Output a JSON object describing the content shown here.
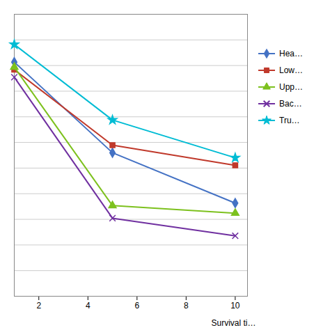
{
  "chart_data": {
    "type": "line",
    "x": [
      1,
      5,
      10
    ],
    "series": [
      {
        "name": "Hea…",
        "color": "#4472c4",
        "marker": "diamond",
        "values": [
          0.93,
          0.57,
          0.37
        ]
      },
      {
        "name": "Low…",
        "color": "#c0392b",
        "marker": "square",
        "values": [
          0.9,
          0.6,
          0.52
        ]
      },
      {
        "name": "Upp…",
        "color": "#7dc11e",
        "marker": "triangle",
        "values": [
          0.91,
          0.36,
          0.33
        ]
      },
      {
        "name": "Bac…",
        "color": "#7030a0",
        "marker": "x",
        "values": [
          0.87,
          0.31,
          0.24
        ]
      },
      {
        "name": "Tru…",
        "color": "#00bcd4",
        "marker": "star",
        "values": [
          1.0,
          0.7,
          0.55
        ]
      }
    ],
    "xlabel": "Survival ti…",
    "xlim": [
      1,
      10.5
    ],
    "xticks": [
      2,
      4,
      6,
      8,
      10
    ],
    "ylim": [
      0.0,
      1.12
    ],
    "yticks": [
      0,
      0.10181818181818182,
      0.20363636363636364,
      0.3054545454545454,
      0.4072727272727273,
      0.5090909090909091,
      0.6109090909090908,
      0.7127272727272727,
      0.8145454545454546,
      0.9163636363636364,
      1.0181818181818183,
      1.12
    ],
    "grid": true,
    "tick_labels": "x",
    "legend": "right"
  }
}
